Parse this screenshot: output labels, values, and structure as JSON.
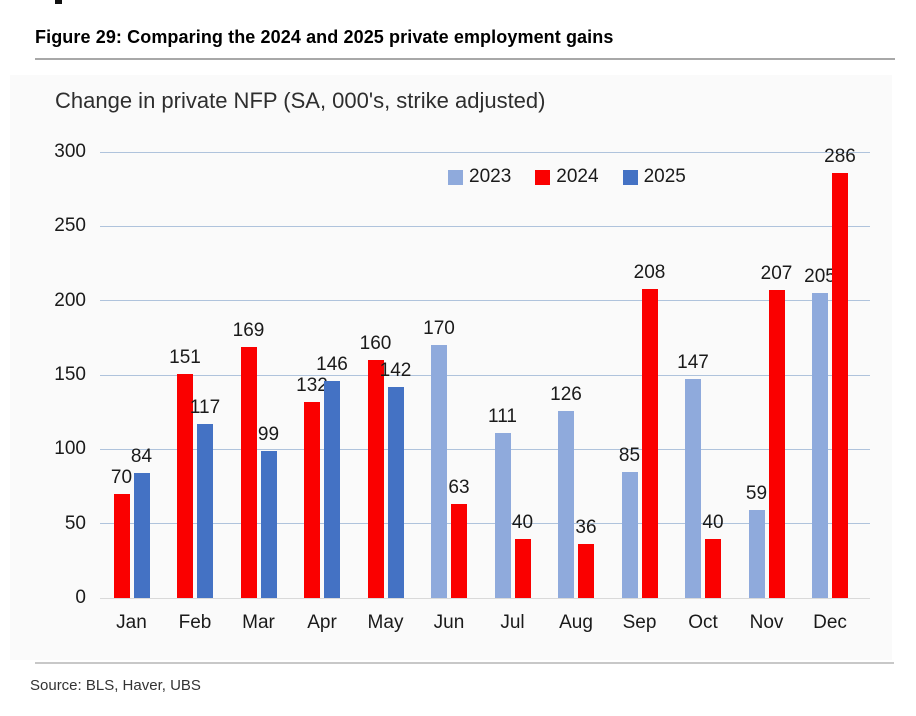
{
  "page": {
    "figure_title": "Figure 29: Comparing the 2024 and 2025 private employment gains",
    "source": "Source: BLS, Haver, UBS"
  },
  "chart_data": {
    "type": "bar",
    "title": "Change in private NFP (SA, 000's, strike adjusted)",
    "categories": [
      "Jan",
      "Feb",
      "Mar",
      "Apr",
      "May",
      "Jun",
      "Jul",
      "Aug",
      "Sep",
      "Oct",
      "Nov",
      "Dec"
    ],
    "series": [
      {
        "name": "2023",
        "color": "#8FAADC",
        "values": [
          null,
          null,
          null,
          null,
          null,
          170,
          111,
          126,
          85,
          147,
          59,
          205
        ]
      },
      {
        "name": "2024",
        "color": "#FA0000",
        "values": [
          70,
          151,
          169,
          132,
          160,
          63,
          40,
          36,
          208,
          40,
          207,
          286
        ]
      },
      {
        "name": "2025",
        "color": "#4472C4",
        "values": [
          84,
          117,
          99,
          146,
          142,
          null,
          null,
          null,
          null,
          null,
          null,
          null
        ]
      }
    ],
    "ylim": [
      0,
      300
    ],
    "yticks": [
      0,
      50,
      100,
      150,
      200,
      250,
      300
    ],
    "grid": true,
    "legend_position": "top",
    "colors": {
      "gridline": "#AFC3DC",
      "zero_line": "#D9D9D9",
      "panel_background": "#FAFAFA"
    }
  }
}
